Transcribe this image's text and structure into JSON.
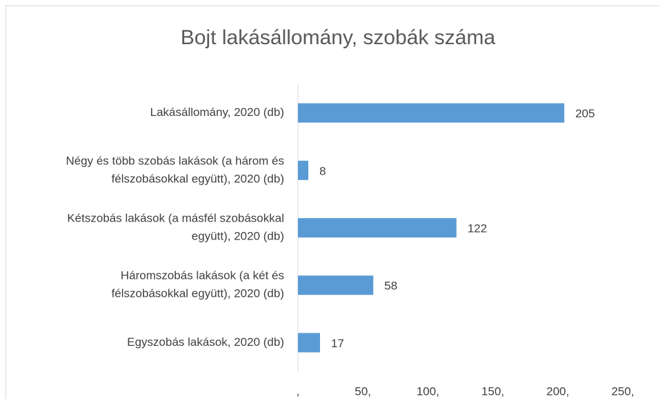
{
  "chart_data": {
    "type": "bar",
    "orientation": "horizontal",
    "title": "Bojt lakásállomány, szobák száma",
    "categories": [
      [
        "Lakásállomány, 2020 (db)"
      ],
      [
        "Négy és több szobás lakások (a három és",
        "félszobásokkal együtt), 2020 (db)"
      ],
      [
        "Kétszobás lakások (a másfél szobásokkal",
        "együtt), 2020 (db)"
      ],
      [
        "Háromszobás lakások (a két és",
        "félszobásokkal együtt), 2020 (db)"
      ],
      [
        "Egyszobás lakások, 2020 (db)"
      ]
    ],
    "values": [
      205,
      8,
      122,
      58,
      17
    ],
    "color": "#5b9bd5",
    "xlim": [
      0,
      250
    ],
    "xticks": [
      {
        "value": 0,
        "label": ","
      },
      {
        "value": 50,
        "label": "50,"
      },
      {
        "value": 100,
        "label": "100,"
      },
      {
        "value": 150,
        "label": "150,"
      },
      {
        "value": 200,
        "label": "200,"
      },
      {
        "value": 250,
        "label": "250,"
      }
    ],
    "grid": false
  }
}
